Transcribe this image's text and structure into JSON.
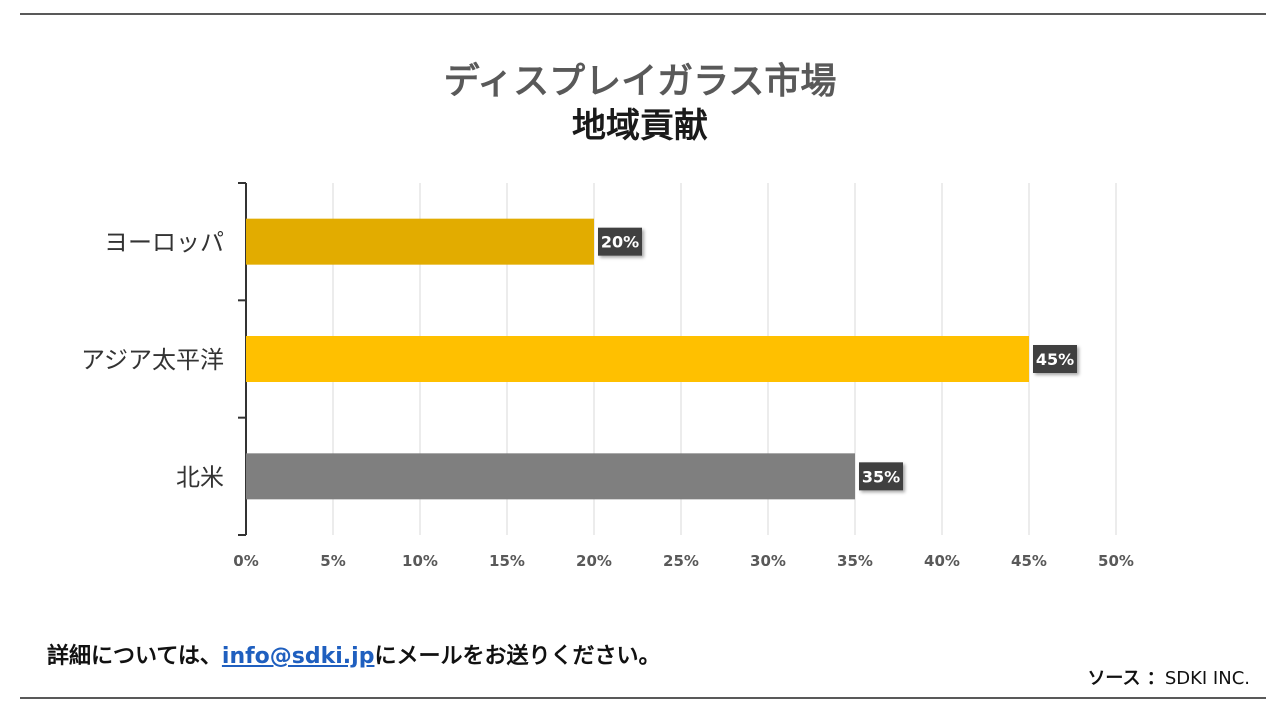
{
  "title_line1": "ディスプレイガラス市場",
  "title_line2": "地域貢献",
  "chart_data": {
    "type": "bar",
    "orientation": "horizontal",
    "categories": [
      "ヨーロッパ",
      "アジア太平洋",
      "北米"
    ],
    "values": [
      20,
      45,
      35
    ],
    "data_labels": [
      "20%",
      "45%",
      "35%"
    ],
    "colors": [
      "#e2ac00",
      "#ffc000",
      "#7f7f7f"
    ],
    "xlim": [
      0,
      50
    ],
    "xticks": [
      0,
      5,
      10,
      15,
      20,
      25,
      30,
      35,
      40,
      45,
      50
    ],
    "xtick_labels": [
      "0%",
      "5%",
      "10%",
      "15%",
      "20%",
      "25%",
      "30%",
      "35%",
      "40%",
      "45%",
      "50%"
    ],
    "grid": true,
    "legend": "none"
  },
  "footer": {
    "text_before": "詳細については、",
    "email": "info@sdki.jp",
    "text_after": "にメールをお送りください。"
  },
  "source": {
    "label": "ソース ：",
    "value": "SDKI INC."
  },
  "colors": {
    "rule": "#595959",
    "link": "#1f5fbf",
    "data_label_bg": "#404040"
  }
}
